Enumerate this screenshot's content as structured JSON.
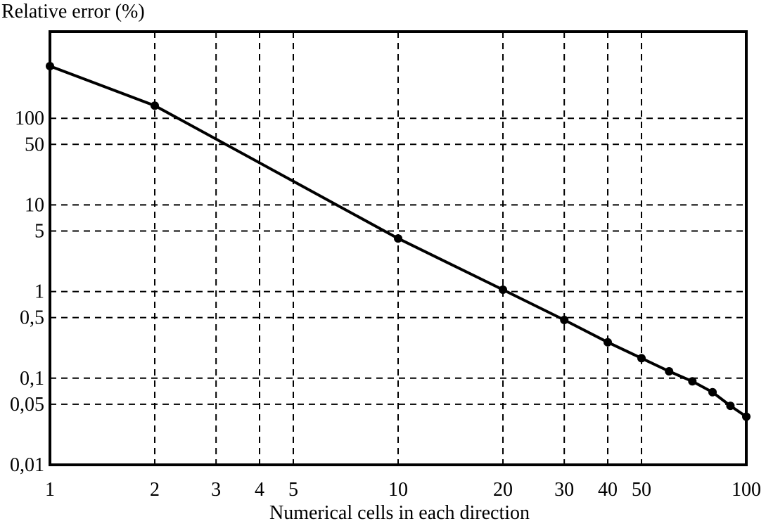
{
  "chart_data": {
    "type": "line",
    "title": "",
    "ylabel": "Relative error  (%)",
    "xlabel": "Numerical cells in each direction",
    "xscale": "log",
    "yscale": "log",
    "xlim": [
      1,
      100
    ],
    "ylim": [
      0.01,
      1000
    ],
    "grid": true,
    "x_ticks": [
      1,
      2,
      3,
      4,
      5,
      10,
      20,
      30,
      40,
      50,
      100
    ],
    "x_tick_labels": [
      "1",
      "2",
      "3",
      "4",
      "5",
      "10",
      "20",
      "30",
      "40",
      "50",
      "100"
    ],
    "y_ticks": [
      0.01,
      0.05,
      0.1,
      0.5,
      1,
      5,
      10,
      50,
      100
    ],
    "y_tick_labels": [
      "0,01",
      "0,05",
      "0,1",
      "0,5",
      "1",
      "5",
      "10",
      "50",
      "100"
    ],
    "series": [
      {
        "x": [
          1,
          2,
          10,
          20,
          30,
          40,
          50,
          60,
          70,
          80,
          90,
          100
        ],
        "y": [
          400,
          140,
          4.1,
          1.05,
          0.47,
          0.26,
          0.17,
          0.12,
          0.092,
          0.069,
          0.048,
          0.036
        ]
      }
    ]
  }
}
